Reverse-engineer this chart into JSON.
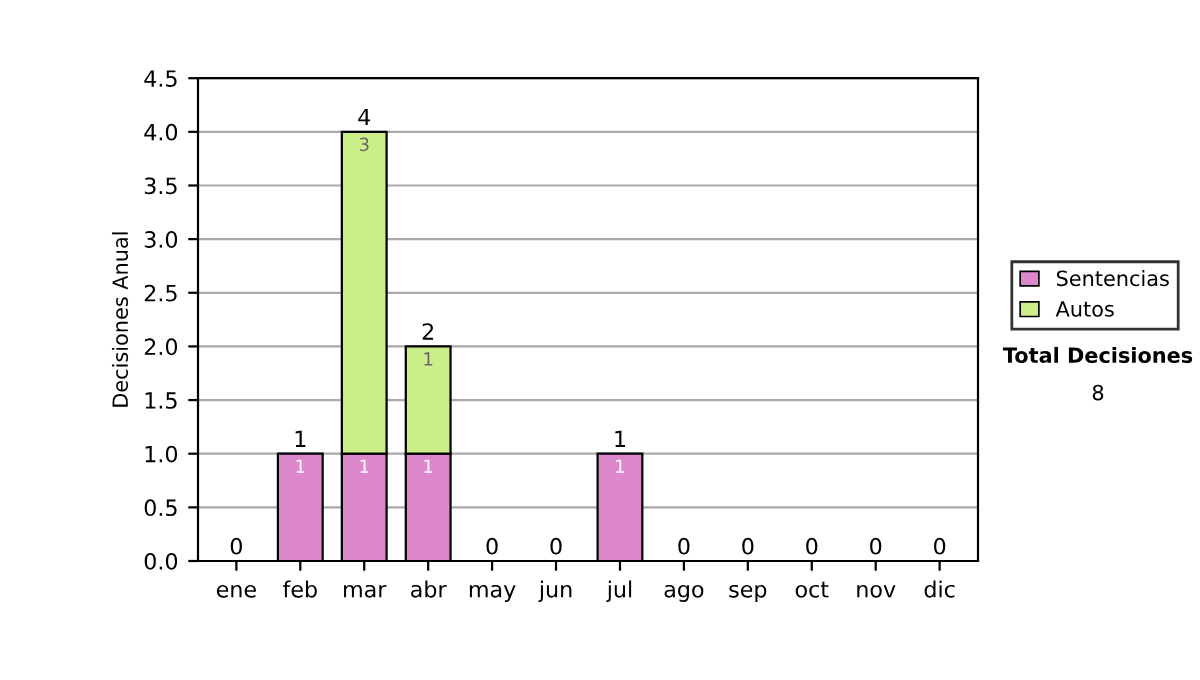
{
  "chart_data": {
    "type": "bar",
    "stacked": true,
    "ylabel": "Decisiones Anual",
    "categories": [
      "ene",
      "feb",
      "mar",
      "abr",
      "may",
      "jun",
      "jul",
      "ago",
      "sep",
      "oct",
      "nov",
      "dic"
    ],
    "series": [
      {
        "name": "Sentencias",
        "color": "#dd88cc",
        "values": [
          0,
          1,
          1,
          1,
          0,
          0,
          1,
          0,
          0,
          0,
          0,
          0
        ],
        "value_labels": [
          null,
          "1",
          "1",
          "1",
          null,
          null,
          "1",
          null,
          null,
          null,
          null,
          null
        ]
      },
      {
        "name": "Autos",
        "color": "#ccee88",
        "values": [
          0,
          0,
          3,
          1,
          0,
          0,
          0,
          0,
          0,
          0,
          0,
          0
        ],
        "value_labels": [
          null,
          null,
          "3",
          "1",
          null,
          null,
          null,
          null,
          null,
          null,
          null,
          null
        ]
      }
    ],
    "totals": [
      "0",
      "1",
      "4",
      "2",
      "0",
      "0",
      "1",
      "0",
      "0",
      "0",
      "0",
      "0"
    ],
    "ylim": [
      0,
      4.5
    ],
    "yticks": [
      {
        "value": 0,
        "label": "0.0"
      },
      {
        "value": 0.5,
        "label": "0.5"
      },
      {
        "value": 1,
        "label": "1.0"
      },
      {
        "value": 1.5,
        "label": "1.5"
      },
      {
        "value": 2,
        "label": "2.0"
      },
      {
        "value": 2.5,
        "label": "2.5"
      },
      {
        "value": 3,
        "label": "3.0"
      },
      {
        "value": 3.5,
        "label": "3.5"
      },
      {
        "value": 4,
        "label": "4.0"
      },
      {
        "value": 4.5,
        "label": "4.5"
      }
    ],
    "grid": "y",
    "legend": "right",
    "annotations": [
      "Total Decisiones",
      "8"
    ]
  }
}
